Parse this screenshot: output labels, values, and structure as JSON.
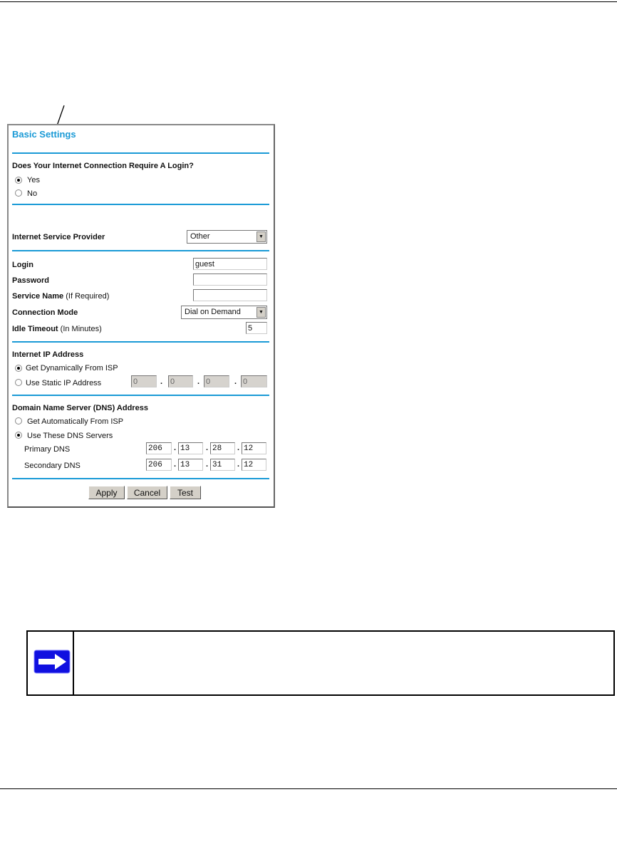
{
  "form": {
    "title": "Basic Settings",
    "login_question": "Does Your Internet Connection Require A Login?",
    "login_options": [
      {
        "label": "Yes",
        "selected": true
      },
      {
        "label": "No",
        "selected": false
      }
    ],
    "isp_label": "Internet Service Provider",
    "isp_value": "Other",
    "login_label": "Login",
    "login_value": "guest",
    "password_label": "Password",
    "password_value": "",
    "service_label": "Service Name",
    "service_hint": "(If Required)",
    "service_value": "",
    "connection_mode_label": "Connection Mode",
    "connection_mode_value": "Dial on Demand",
    "idle_label": "Idle Timeout",
    "idle_hint": "(In Minutes)",
    "idle_value": "5",
    "ip_section": "Internet IP Address",
    "ip_dynamic": "Get Dynamically From ISP",
    "ip_static": "Use Static IP Address",
    "ip_static_octets": [
      "0",
      "0",
      "0",
      "0"
    ],
    "dns_section": "Domain Name Server (DNS) Address",
    "dns_auto": "Get Automatically From ISP",
    "dns_manual": "Use These DNS Servers",
    "primary_label": "Primary DNS",
    "primary_octets": [
      "206",
      "13",
      "28",
      "12"
    ],
    "secondary_label": "Secondary DNS",
    "secondary_octets": [
      "206",
      "13",
      "31",
      "12"
    ],
    "buttons": {
      "apply": "Apply",
      "cancel": "Cancel",
      "test": "Test"
    },
    "accent_color": "#1a9ad6"
  },
  "note": {
    "icon": "arrow-right-icon",
    "icon_color": "#1010e0"
  }
}
